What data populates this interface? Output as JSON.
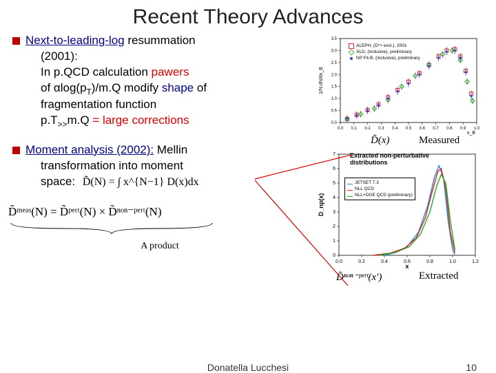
{
  "title": "Recent Theory Advances",
  "bullet1": {
    "heading_a": "Next-to-leading-log",
    "heading_b": " resummation",
    "line1": "(2001):",
    "line2a": "In p.QCD calculation ",
    "line2b": "pawers",
    "line3a": "of αlog(p",
    "line3a_sub": "T",
    "line3a_tail": ")/m.Q modify ",
    "line3b": "shape",
    "line3c": " of",
    "line4": "fragmentation function",
    "line5a": "p.T",
    "line5a_sub": ">>",
    "line5b": "m.Q ",
    "line5c": "= large corrections"
  },
  "bullet2": {
    "heading": "Moment analysis (2002):",
    "tail": " Mellin",
    "line1": "transformation into moment",
    "line2": "space:"
  },
  "chart1": {
    "ylabel": "1/N dN/dx_B",
    "xlabel": "x_B",
    "xlim": [
      0,
      1
    ],
    "ylim": [
      0,
      3.5
    ],
    "xtick_step": 0.1,
    "ytick_step": 0.5,
    "bg": "#ffffff",
    "grid": "#000000",
    "series": [
      {
        "name": "ALEPH, (D*+ excl.), 2001",
        "color": "#ee2222",
        "marker": "square-open",
        "points": [
          [
            0.05,
            0.15
          ],
          [
            0.12,
            0.32
          ],
          [
            0.2,
            0.52
          ],
          [
            0.28,
            0.75
          ],
          [
            0.35,
            1.05
          ],
          [
            0.42,
            1.35
          ],
          [
            0.5,
            1.7
          ],
          [
            0.58,
            2.05
          ],
          [
            0.65,
            2.4
          ],
          [
            0.72,
            2.75
          ],
          [
            0.78,
            3.0
          ],
          [
            0.84,
            3.05
          ],
          [
            0.88,
            2.75
          ],
          [
            0.92,
            2.15
          ],
          [
            0.96,
            1.2
          ]
        ]
      },
      {
        "name": "SLD, (inclusive), preliminary",
        "color": "#2a9a2a",
        "marker": "diamond-open",
        "points": [
          [
            0.05,
            0.14
          ],
          [
            0.15,
            0.35
          ],
          [
            0.25,
            0.58
          ],
          [
            0.35,
            0.95
          ],
          [
            0.45,
            1.5
          ],
          [
            0.55,
            1.95
          ],
          [
            0.65,
            2.4
          ],
          [
            0.75,
            2.85
          ],
          [
            0.82,
            3.0
          ],
          [
            0.88,
            2.6
          ],
          [
            0.93,
            1.7
          ],
          [
            0.97,
            0.9
          ]
        ]
      },
      {
        "name": "NP Fit-B, (inclusive), preliminary",
        "color": "#2244dd",
        "marker": "point",
        "points": [
          [
            0.05,
            0.16
          ],
          [
            0.12,
            0.3
          ],
          [
            0.2,
            0.5
          ],
          [
            0.28,
            0.72
          ],
          [
            0.35,
            1.0
          ],
          [
            0.42,
            1.3
          ],
          [
            0.5,
            1.62
          ],
          [
            0.58,
            2.0
          ],
          [
            0.65,
            2.35
          ],
          [
            0.72,
            2.7
          ],
          [
            0.78,
            2.95
          ],
          [
            0.84,
            3.0
          ],
          [
            0.88,
            2.7
          ],
          [
            0.92,
            2.1
          ],
          [
            0.96,
            1.1
          ]
        ]
      }
    ]
  },
  "chart2": {
    "title": "Extracted non-perturbative distributions",
    "xlabel": "x",
    "ylabel": "D_np(x)",
    "xlim": [
      0,
      1.2
    ],
    "ylim": [
      0,
      7
    ],
    "xtick_step": 0.2,
    "ytick_step": 1,
    "bg": "#ffffff",
    "series": [
      {
        "name": "JETSET 7.3",
        "color": "#2288dd",
        "points": [
          [
            0.4,
            0
          ],
          [
            0.5,
            0.2
          ],
          [
            0.6,
            0.6
          ],
          [
            0.7,
            1.6
          ],
          [
            0.78,
            3.4
          ],
          [
            0.84,
            5.4
          ],
          [
            0.88,
            6.2
          ],
          [
            0.92,
            5.4
          ],
          [
            0.96,
            2.4
          ],
          [
            1.0,
            0.4
          ],
          [
            1.02,
            0.05
          ]
        ]
      },
      {
        "name": "NLL QCD",
        "color": "#dd2222",
        "points": [
          [
            0.3,
            0
          ],
          [
            0.45,
            0.15
          ],
          [
            0.58,
            0.5
          ],
          [
            0.68,
            1.2
          ],
          [
            0.76,
            2.6
          ],
          [
            0.82,
            4.4
          ],
          [
            0.87,
            5.8
          ],
          [
            0.9,
            6.0
          ],
          [
            0.94,
            4.6
          ],
          [
            0.98,
            1.6
          ],
          [
            1.02,
            0.2
          ]
        ]
      },
      {
        "name": "NLL+DGE QCD (preliminary)",
        "color": "#22aa22",
        "points": [
          [
            0.35,
            0
          ],
          [
            0.5,
            0.2
          ],
          [
            0.62,
            0.6
          ],
          [
            0.72,
            1.5
          ],
          [
            0.8,
            3.0
          ],
          [
            0.86,
            4.8
          ],
          [
            0.9,
            5.6
          ],
          [
            0.94,
            5.0
          ],
          [
            0.98,
            2.4
          ],
          [
            1.02,
            0.4
          ]
        ]
      }
    ]
  },
  "formula_inline": "D̃(N) = ∫ x^{N−1} D(x)dx",
  "formula_below": "D̃ᵐᵉᵃˢ(N) = D̃ᵖᵉʳᵗ(N) × D̃ⁿᵒⁿ⁻ᵖᵉʳᵗ(N)",
  "formula_brace_label": "A product",
  "annot_measured": "Measured",
  "annot_extracted": "Extracted",
  "annot_dbar": "D̃(x)",
  "annot_dnonpert": "D̃ⁿᵒⁿ⁻ᵖᵉʳᵗ(x')",
  "footer_author": "Donatella Lucchesi",
  "footer_page": "10",
  "colors": {
    "title": "#222222",
    "bullet": "#c00000",
    "navy": "#000080",
    "red": "#d60000"
  }
}
